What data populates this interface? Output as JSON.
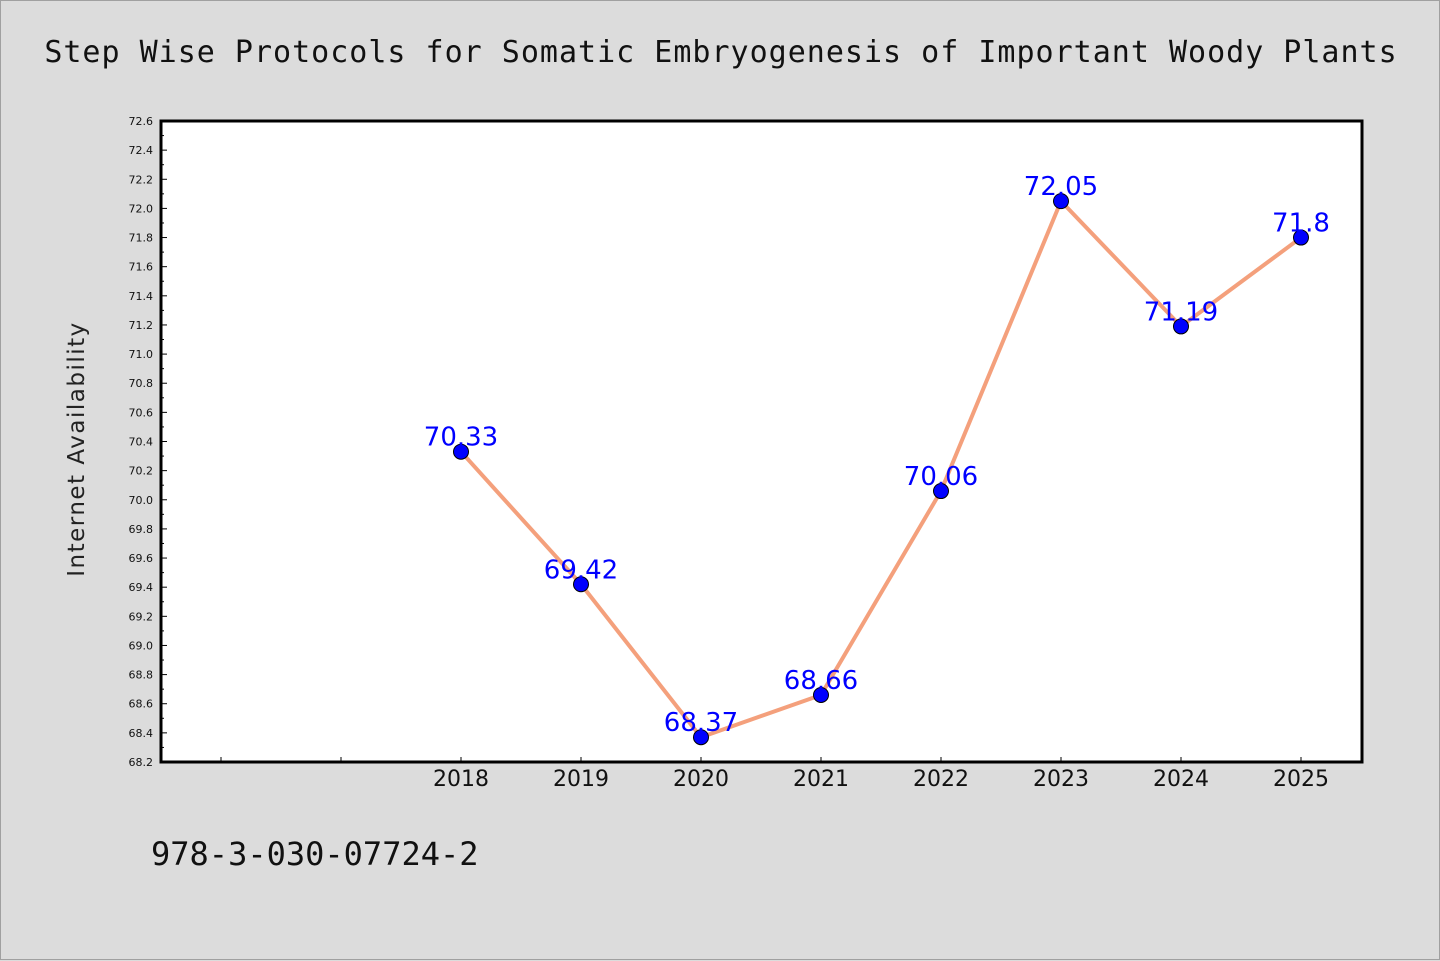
{
  "chart_data": {
    "type": "line",
    "title": "Step Wise Protocols for Somatic Embryogenesis of Important Woody Plants",
    "xlabel": "",
    "ylabel": "Internet Availability",
    "categories": [
      "",
      "",
      "2018",
      "2019",
      "2020",
      "2021",
      "2022",
      "2023",
      "2024",
      "2025"
    ],
    "series": [
      {
        "values": [
          null,
          null,
          70.33,
          69.42,
          68.37,
          68.66,
          70.06,
          72.05,
          71.19,
          71.8
        ],
        "labels": [
          "",
          "",
          "70.33",
          "69.42",
          "68.37",
          "68.66",
          "70.06",
          "72.05",
          "71.19",
          "71.8"
        ]
      }
    ],
    "ylim": [
      68.2,
      72.6
    ],
    "yticks": [
      "68.2",
      "68.4",
      "68.6",
      "68.8",
      "69.0",
      "69.2",
      "69.4",
      "69.6",
      "69.8",
      "70.0",
      "70.2",
      "70.4",
      "70.6",
      "70.8",
      "71.0",
      "71.2",
      "71.4",
      "71.6",
      "71.8",
      "72.0",
      "72.2",
      "72.4",
      "72.6"
    ],
    "grid": false,
    "colors": {
      "line": "#f4a07c",
      "marker": "#0000ff",
      "label": "#0000ff",
      "background": "#dcdcdc",
      "plot_area": "#ffffff"
    }
  },
  "footer_text": "978-3-030-07724-2"
}
